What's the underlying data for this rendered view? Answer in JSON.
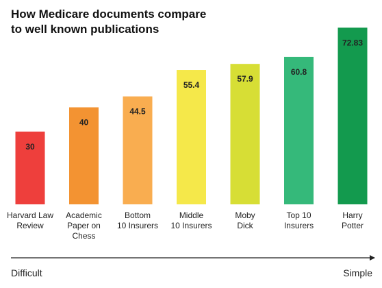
{
  "chart_data": {
    "type": "bar",
    "title": "How Medicare documents compare\nto well known publications",
    "categories": [
      [
        "Harvard Law",
        "Review"
      ],
      [
        "Academic",
        "Paper on",
        "Chess"
      ],
      [
        "Bottom",
        "10 Insurers"
      ],
      [
        "Middle",
        "10 Insurers"
      ],
      [
        "Moby",
        "Dick"
      ],
      [
        "Top 10",
        "Insurers"
      ],
      [
        "Harry",
        "Potter"
      ]
    ],
    "values": [
      30,
      40,
      44.5,
      55.4,
      57.9,
      60.8,
      72.83
    ],
    "value_labels": [
      "30",
      "40",
      "44.5",
      "55.4",
      "57.9",
      "60.8",
      "72.83"
    ],
    "colors": [
      "#ee3f3c",
      "#f39332",
      "#f9ad50",
      "#f5e84a",
      "#d7de35",
      "#35b97a",
      "#139a4e"
    ],
    "ylim": [
      0,
      75
    ],
    "grid": false,
    "axis_scale": {
      "left_label": "Difficult",
      "right_label": "Simple"
    }
  }
}
